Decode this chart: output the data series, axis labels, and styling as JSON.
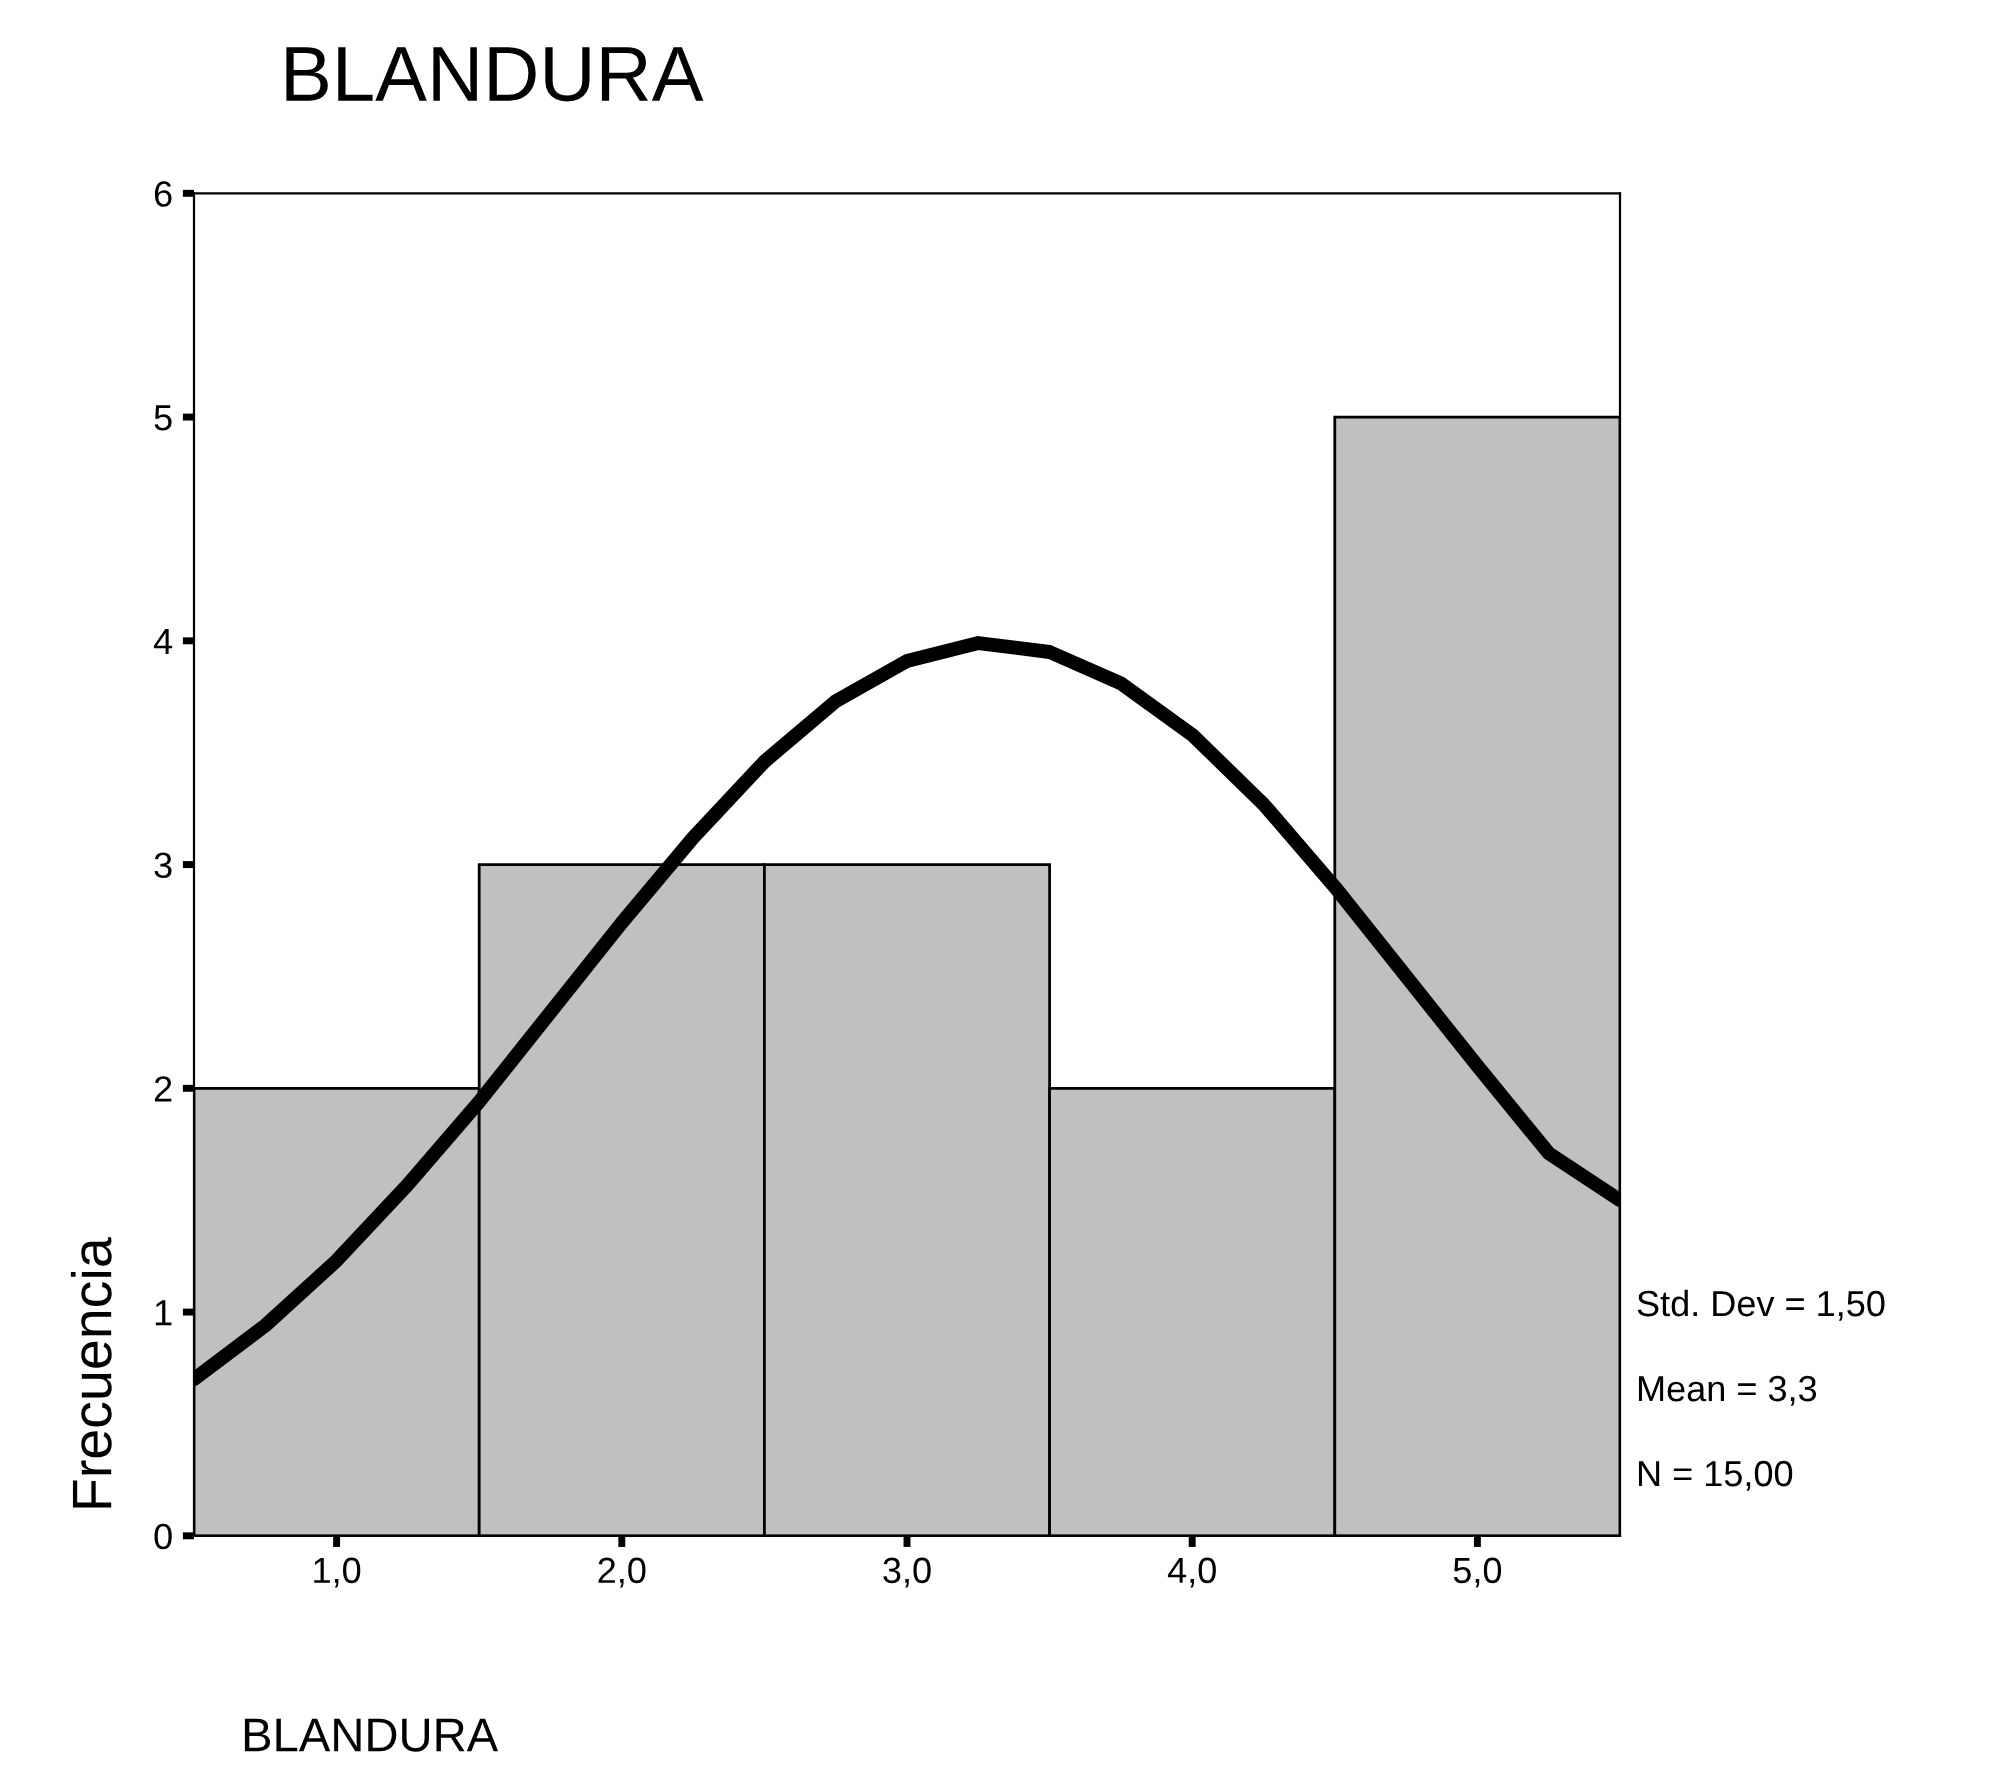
{
  "chart_data": {
    "type": "histogram",
    "title": "BLANDURA",
    "xlabel": "BLANDURA",
    "ylabel": "Frecuencia",
    "bins": [
      0.5,
      1.5,
      2.5,
      3.5,
      4.5,
      5.5
    ],
    "values": [
      2,
      3,
      3,
      2,
      5
    ],
    "color": "#c0c0c0",
    "series": [
      {
        "type": "line",
        "color": "#000000",
        "x": [
          0.5,
          0.75,
          1.0,
          1.25,
          1.5,
          1.75,
          2.0,
          2.25,
          2.5,
          2.75,
          3.0,
          3.25,
          3.5,
          3.75,
          4.0,
          4.25,
          4.5,
          4.75,
          5.0,
          5.25,
          5.5
        ],
        "values": [
          0.7,
          0.94,
          1.23,
          1.57,
          1.94,
          2.34,
          2.74,
          3.12,
          3.46,
          3.73,
          3.91,
          3.99,
          3.95,
          3.81,
          3.58,
          3.27,
          2.9,
          2.5,
          2.1,
          1.71,
          1.5
        ]
      }
    ],
    "xlim": [
      0.5,
      5.5
    ],
    "ylim": [
      0,
      6
    ],
    "xticks": [
      {
        "value": 1,
        "label": "1,0"
      },
      {
        "value": 2,
        "label": "2,0"
      },
      {
        "value": 3,
        "label": "3,0"
      },
      {
        "value": 4,
        "label": "4,0"
      },
      {
        "value": 5,
        "label": "5,0"
      }
    ],
    "yticks": [
      0,
      1,
      2,
      3,
      4,
      5,
      6
    ],
    "annotations": [
      "Std. Dev = 1,50",
      "Mean = 3,3",
      "N = 15,00"
    ],
    "grid": false,
    "legend": false
  }
}
